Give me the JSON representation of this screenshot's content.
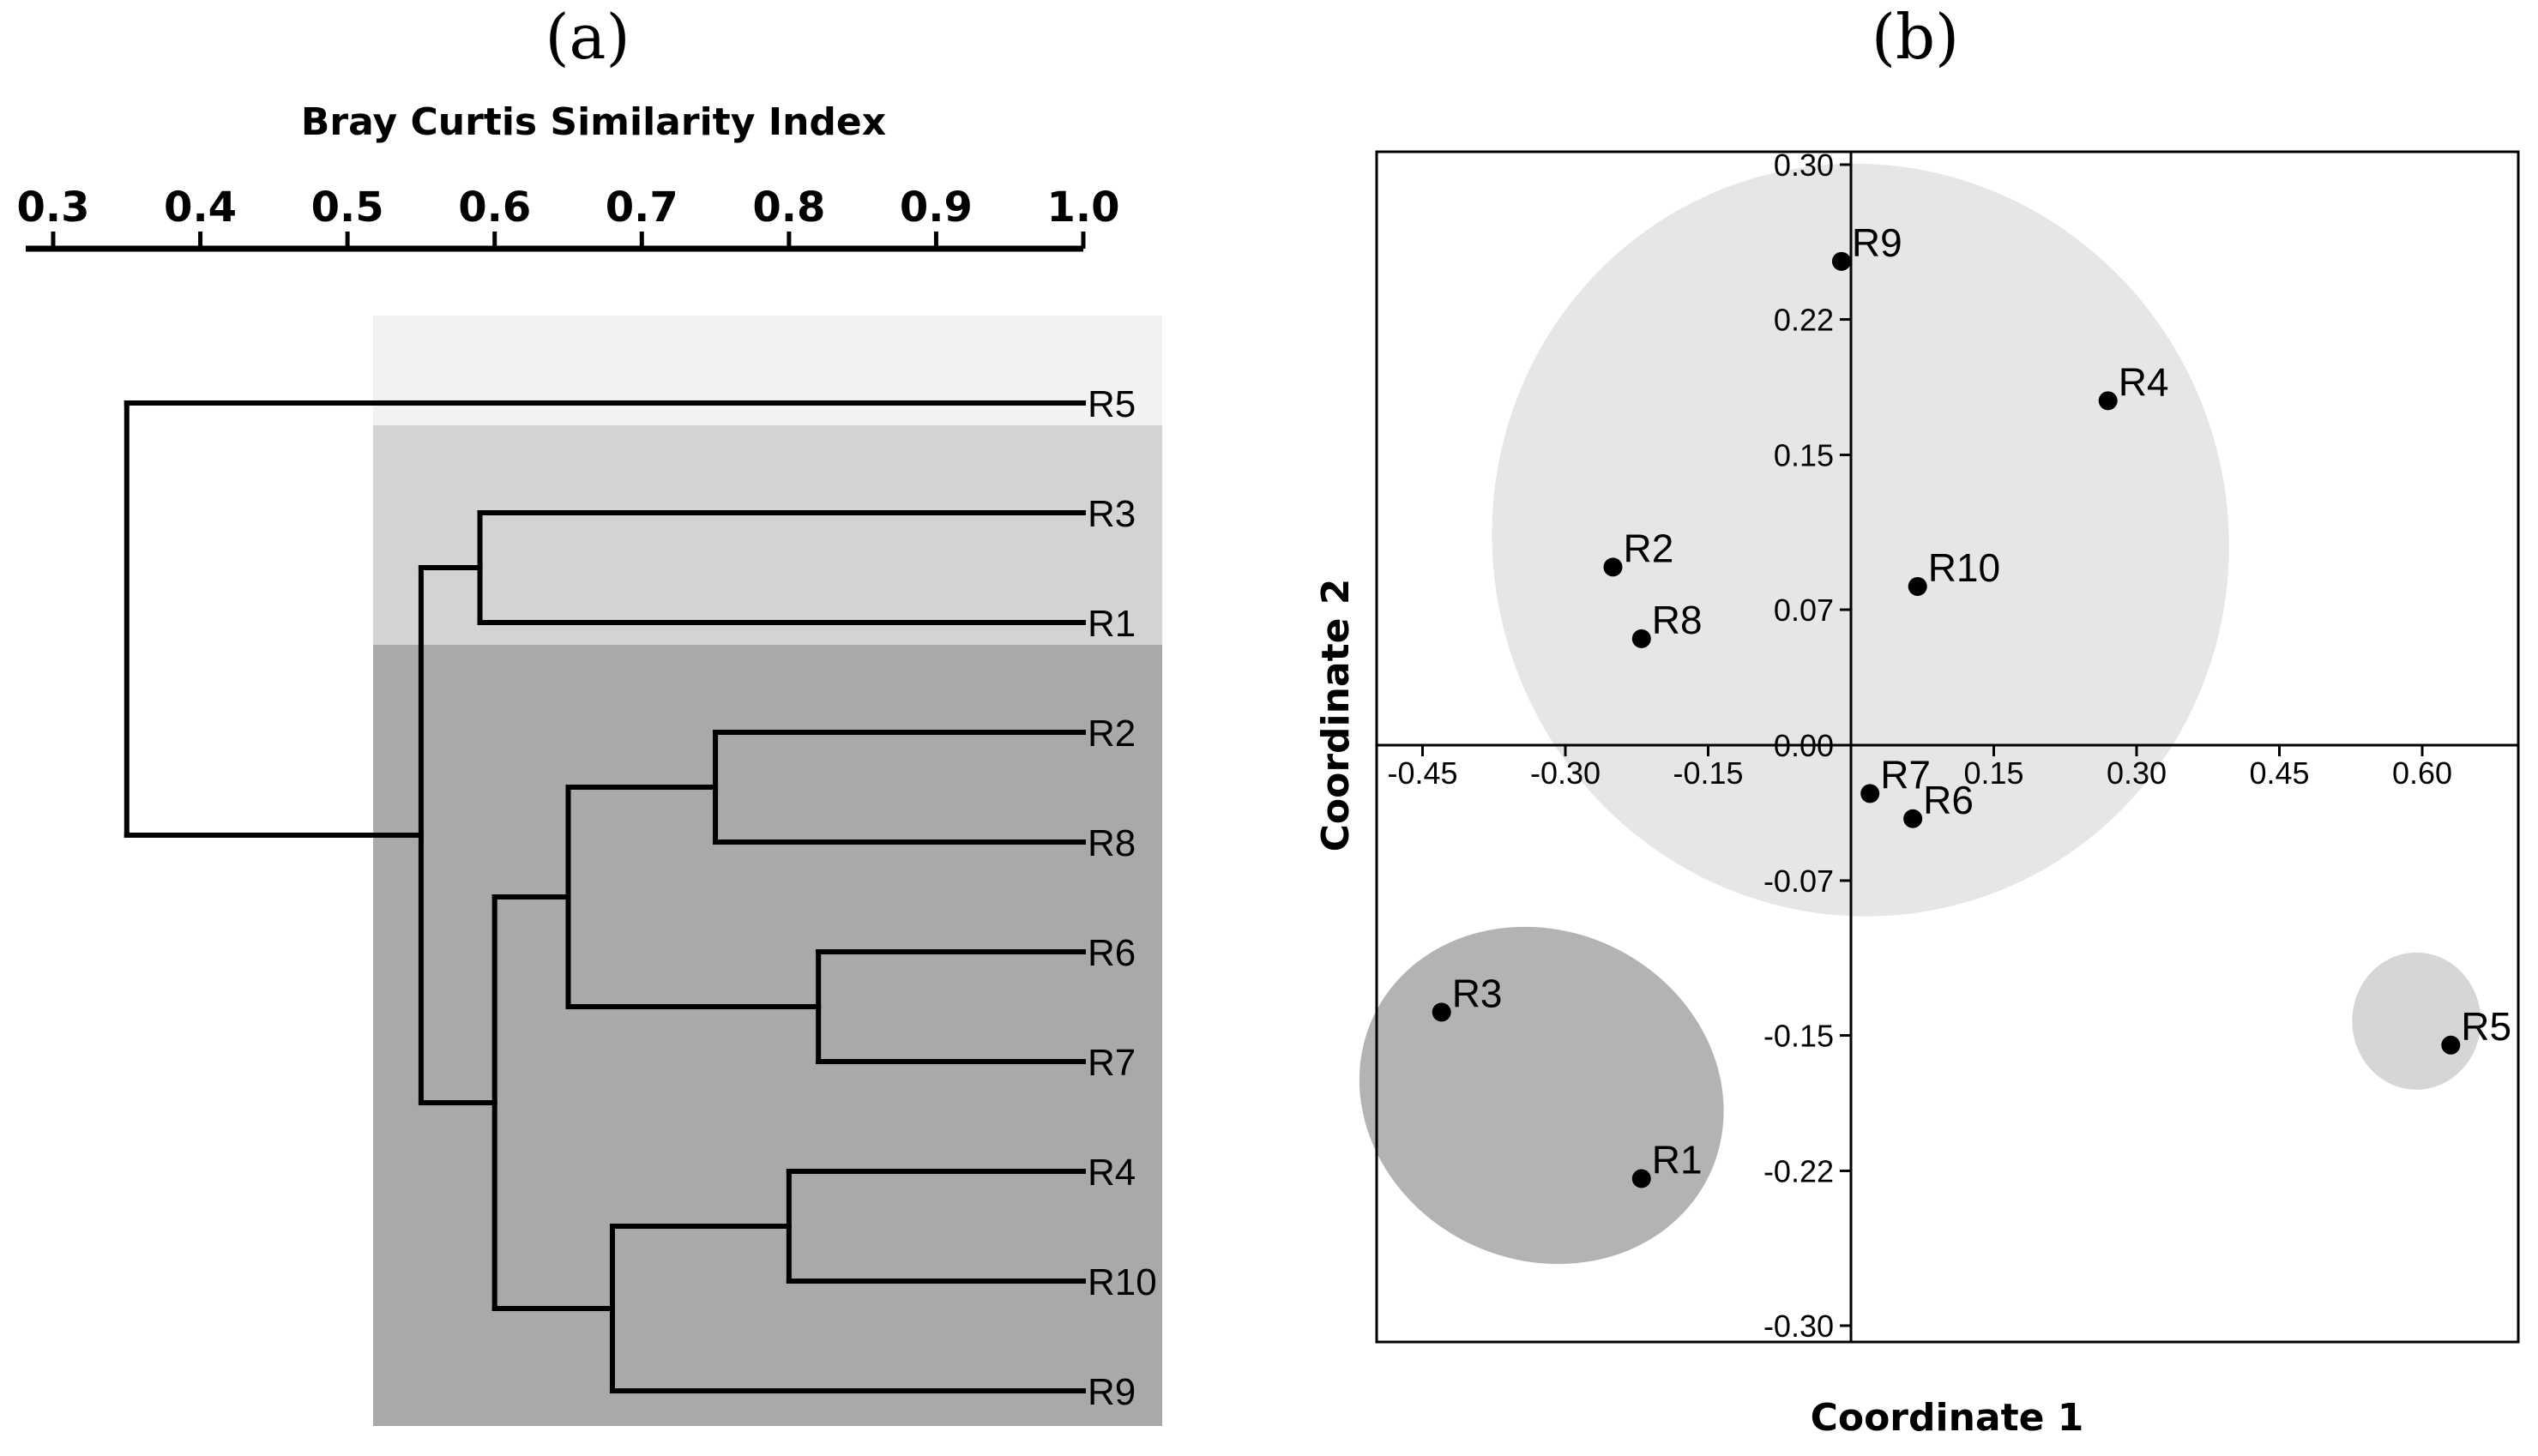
{
  "panels": {
    "a_label": "(a)",
    "b_label": "(b)"
  },
  "chart_data": [
    {
      "type": "dendrogram",
      "title": "Bray Curtis Similarity Index",
      "xlim": [
        0.3,
        1.0
      ],
      "ticks": [
        0.3,
        0.4,
        0.5,
        0.6,
        0.7,
        0.8,
        0.9,
        1.0
      ],
      "tick_labels": [
        "0.3",
        "0.4",
        "0.5",
        "0.6",
        "0.7",
        "0.8",
        "0.9",
        "1.0"
      ],
      "leaves": [
        "R5",
        "R3",
        "R1",
        "R2",
        "R8",
        "R6",
        "R7",
        "R4",
        "R10",
        "R9"
      ],
      "merges": [
        {
          "id": "n1",
          "children": [
            "R3",
            "R1"
          ],
          "similarity": 0.59
        },
        {
          "id": "n2",
          "children": [
            "R2",
            "R8"
          ],
          "similarity": 0.75
        },
        {
          "id": "n3",
          "children": [
            "R6",
            "R7"
          ],
          "similarity": 0.82
        },
        {
          "id": "n4",
          "children": [
            "R4",
            "R10"
          ],
          "similarity": 0.8
        },
        {
          "id": "n5",
          "children": [
            "n2",
            "n3"
          ],
          "similarity": 0.65
        },
        {
          "id": "n6",
          "children": [
            "n4",
            "R9"
          ],
          "similarity": 0.68
        },
        {
          "id": "n7",
          "children": [
            "n5",
            "n6"
          ],
          "similarity": 0.6
        },
        {
          "id": "n8",
          "children": [
            "n1",
            "n7"
          ],
          "similarity": 0.55
        },
        {
          "id": "n9",
          "children": [
            "R5",
            "n8"
          ],
          "similarity": 0.35
        }
      ],
      "groups": [
        {
          "members": [
            "R5"
          ],
          "color": "#f2f2f2"
        },
        {
          "members": [
            "R3",
            "R1"
          ],
          "color": "#d3d3d3"
        },
        {
          "members": [
            "R2",
            "R8",
            "R6",
            "R7",
            "R4",
            "R10",
            "R9"
          ],
          "color": "#a9a9a9"
        }
      ]
    },
    {
      "type": "scatter",
      "xlabel": "Coordinate 1",
      "ylabel": "Coordinate 2",
      "xlim": [
        -0.49,
        0.68
      ],
      "ylim": [
        -0.3,
        0.3
      ],
      "xticks": [
        -0.45,
        -0.3,
        -0.15,
        0.15,
        0.3,
        0.45,
        0.6
      ],
      "xtick_labels": [
        "-0.45",
        "-0.30",
        "-0.15",
        "0.15",
        "0.30",
        "0.45",
        "0.60"
      ],
      "yticks": [
        0.3,
        0.22,
        0.15,
        0.07,
        0.0,
        -0.07,
        -0.15,
        -0.22,
        -0.3
      ],
      "ytick_labels": [
        "0.30",
        "0.22",
        "0.15",
        "0.07",
        "0.00",
        "-0.07",
        "-0.15",
        "-0.22",
        "-0.30"
      ],
      "points": [
        {
          "label": "R9",
          "x": -0.01,
          "y": 0.25
        },
        {
          "label": "R4",
          "x": 0.27,
          "y": 0.178
        },
        {
          "label": "R2",
          "x": -0.25,
          "y": 0.092
        },
        {
          "label": "R10",
          "x": 0.07,
          "y": 0.082
        },
        {
          "label": "R8",
          "x": -0.22,
          "y": 0.055
        },
        {
          "label": "R7",
          "x": 0.02,
          "y": -0.025
        },
        {
          "label": "R6",
          "x": 0.065,
          "y": -0.038
        },
        {
          "label": "R3",
          "x": -0.43,
          "y": -0.138
        },
        {
          "label": "R1",
          "x": -0.22,
          "y": -0.224
        },
        {
          "label": "R5",
          "x": 0.63,
          "y": -0.155
        }
      ],
      "ellipses": [
        {
          "members": [
            "R9",
            "R4",
            "R2",
            "R10",
            "R8",
            "R7",
            "R6"
          ],
          "color": "#e6e6e6"
        },
        {
          "members": [
            "R3",
            "R1"
          ],
          "color": "#b3b3b3"
        },
        {
          "members": [
            "R5"
          ],
          "color": "#d6d6d6"
        }
      ]
    }
  ]
}
